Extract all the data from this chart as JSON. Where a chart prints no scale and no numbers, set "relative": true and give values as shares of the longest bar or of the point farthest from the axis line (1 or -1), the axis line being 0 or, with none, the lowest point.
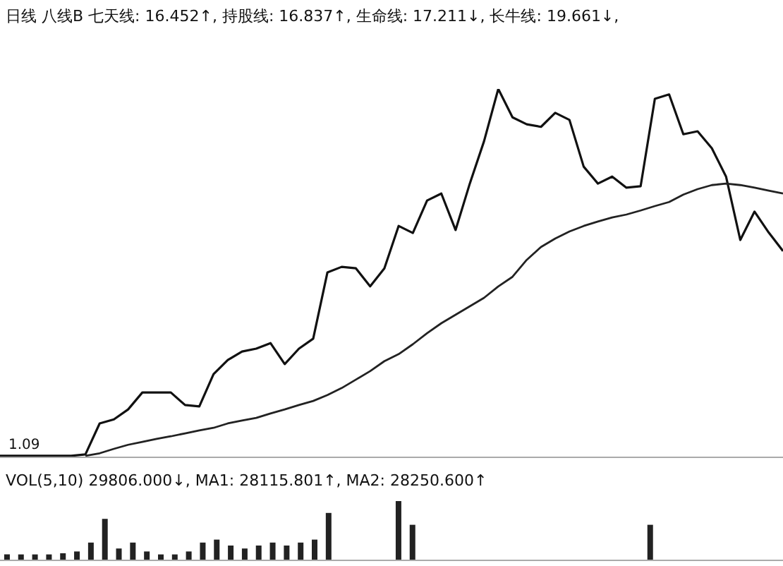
{
  "chart_data": [
    {
      "type": "line",
      "relative": true,
      "title": "日线 八线B 七天线: 16.452↑, 持股线: 16.837↑, 生命线: 17.211↓, 长牛线: 19.661↓,",
      "annotations": [
        "1.09"
      ],
      "categories": [
        null,
        null,
        null,
        null,
        null,
        null,
        null,
        null,
        null,
        null,
        null,
        null,
        null,
        null,
        null,
        null,
        null,
        null,
        null,
        null,
        null,
        null,
        null,
        null,
        null,
        null,
        null,
        null,
        null,
        null,
        null,
        null,
        null,
        null,
        null,
        null,
        null,
        null,
        null,
        null,
        null,
        null,
        null,
        null,
        null,
        null,
        null,
        null,
        null,
        null,
        null,
        null,
        null,
        null,
        null,
        null
      ],
      "series": [
        {
          "color": "#111111",
          "values": [
            0.004,
            0.004,
            0.004,
            0.004,
            0.004,
            0.004,
            0.008,
            0.092,
            0.103,
            0.13,
            0.176,
            0.176,
            0.176,
            0.142,
            0.138,
            0.226,
            0.264,
            0.287,
            0.295,
            0.31,
            0.253,
            0.295,
            0.322,
            0.502,
            0.517,
            0.513,
            0.464,
            0.513,
            0.628,
            0.609,
            0.697,
            0.716,
            0.617,
            0.743,
            0.858,
            1,
            0.923,
            0.904,
            0.897,
            0.935,
            0.916,
            0.789,
            0.743,
            0.762,
            0.732,
            0.736,
            0.973,
            0.985,
            0.877,
            0.885,
            0.839,
            0.762,
            0.59,
            0.667,
            0.61,
            0.56
          ]
        },
        {
          "color": "#222222",
          "values": [
            null,
            null,
            null,
            null,
            null,
            null,
            0.004,
            0.011,
            0.023,
            0.034,
            0.042,
            0.05,
            0.057,
            0.065,
            0.073,
            0.08,
            0.092,
            0.1,
            0.107,
            0.119,
            0.13,
            0.142,
            0.153,
            0.169,
            0.188,
            0.211,
            0.234,
            0.261,
            0.28,
            0.307,
            0.337,
            0.364,
            0.387,
            0.41,
            0.433,
            0.464,
            0.49,
            0.536,
            0.571,
            0.594,
            0.613,
            0.628,
            0.64,
            0.651,
            0.659,
            0.67,
            0.682,
            0.693,
            0.713,
            0.728,
            0.739,
            0.743,
            0.739,
            0.732,
            0.724,
            0.716
          ]
        }
      ]
    },
    {
      "type": "bar",
      "relative": true,
      "title": "VOL(5,10) 29806.000↓, MA1: 28115.801↑, MA2: 28250.600↑",
      "categories": [
        null,
        null,
        null,
        null,
        null,
        null,
        null,
        null,
        null,
        null,
        null,
        null,
        null,
        null,
        null,
        null,
        null,
        null,
        null,
        null,
        null,
        null,
        null,
        null,
        null,
        null,
        null,
        null,
        null,
        null,
        null,
        null,
        null,
        null,
        null,
        null,
        null,
        null,
        null,
        null,
        null,
        null,
        null,
        null,
        null,
        null,
        null,
        null,
        null,
        null,
        null,
        null,
        null,
        null,
        null,
        null
      ],
      "series": [
        {
          "color": "#222222",
          "values": [
            0.1,
            0.1,
            0.1,
            0.1,
            0.12,
            0.15,
            0.3,
            0.7,
            0.2,
            0.3,
            0.15,
            0.1,
            0.1,
            0.15,
            0.3,
            0.35,
            0.25,
            0.2,
            0.25,
            0.3,
            0.25,
            0.3,
            0.35,
            0.8,
            null,
            null,
            null,
            null,
            1,
            0.6,
            null,
            null,
            null,
            null,
            null,
            null,
            null,
            null,
            null,
            null,
            null,
            null,
            null,
            null,
            null,
            null,
            0.6,
            null,
            null,
            null,
            null,
            null,
            null,
            null,
            null,
            null
          ]
        }
      ]
    }
  ]
}
